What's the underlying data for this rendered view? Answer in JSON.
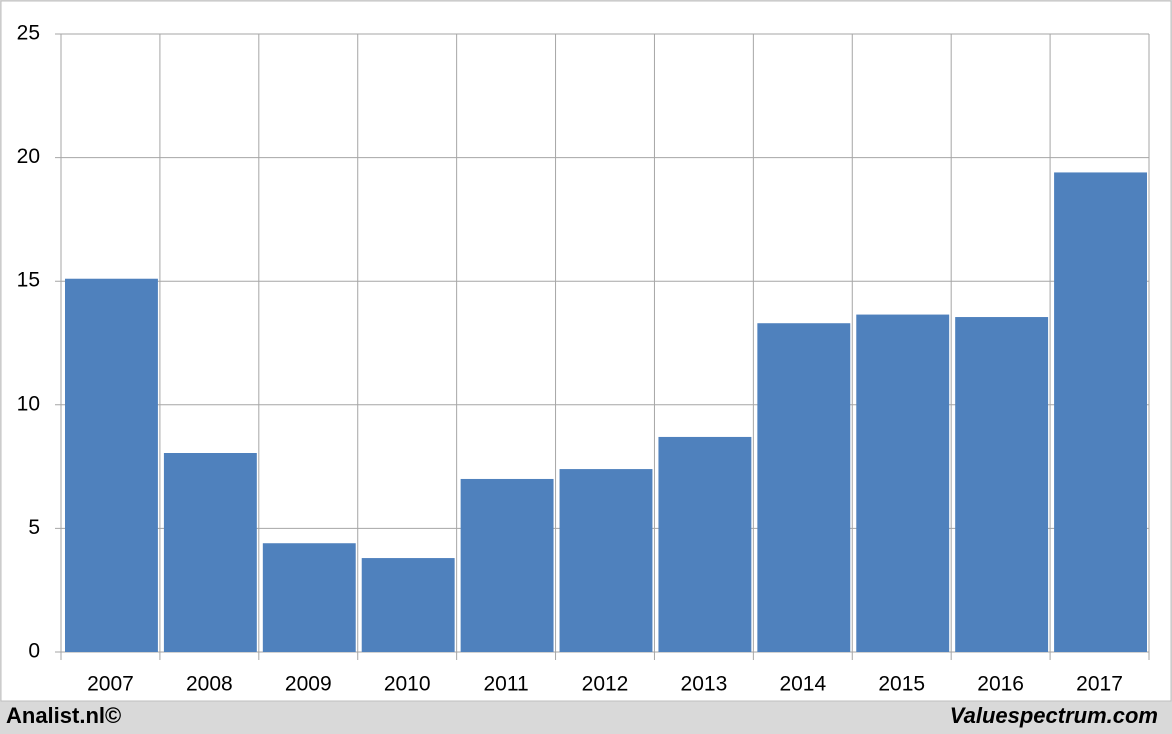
{
  "chart_data": {
    "type": "bar",
    "categories": [
      "2007",
      "2008",
      "2009",
      "2010",
      "2011",
      "2012",
      "2013",
      "2014",
      "2015",
      "2016",
      "2017"
    ],
    "values": [
      15.1,
      8.05,
      4.4,
      3.8,
      7.0,
      7.4,
      8.7,
      13.3,
      13.65,
      13.55,
      19.4
    ],
    "color": "#4f81bd",
    "ylim": [
      0,
      25
    ],
    "yticks": [
      0,
      5,
      10,
      15,
      20,
      25
    ],
    "grid": true
  },
  "footer": {
    "left": "Analist.nl©",
    "right": "Valuespectrum.com"
  }
}
